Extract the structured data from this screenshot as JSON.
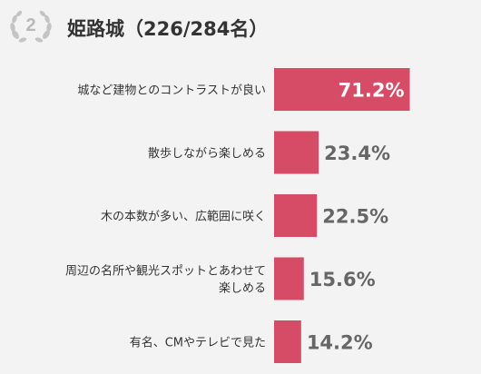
{
  "header": {
    "rank": "2",
    "title": "姫路城（226/284名）"
  },
  "colors": {
    "bar": "#d64b66",
    "value_inside": "#ffffff",
    "value_outside": "#666666",
    "label": "#333333",
    "background": "#f3f3f3"
  },
  "chart_data": {
    "type": "bar",
    "orientation": "horizontal",
    "categories": [
      [
        "城など建物とのコントラストが良い"
      ],
      [
        "散歩しながら楽しめる"
      ],
      [
        "木の本数が多い、広範囲に咲く"
      ],
      [
        "周辺の名所や観光スポットとあわせて",
        "楽しめる"
      ],
      [
        "有名、CMやテレビで見た"
      ]
    ],
    "values": [
      71.2,
      23.4,
      22.5,
      15.6,
      14.2
    ],
    "value_labels": [
      "71.2%",
      "23.4%",
      "22.5%",
      "15.6%",
      "14.2%"
    ],
    "xlim": [
      0,
      100
    ],
    "grid": false,
    "legend": "none"
  }
}
